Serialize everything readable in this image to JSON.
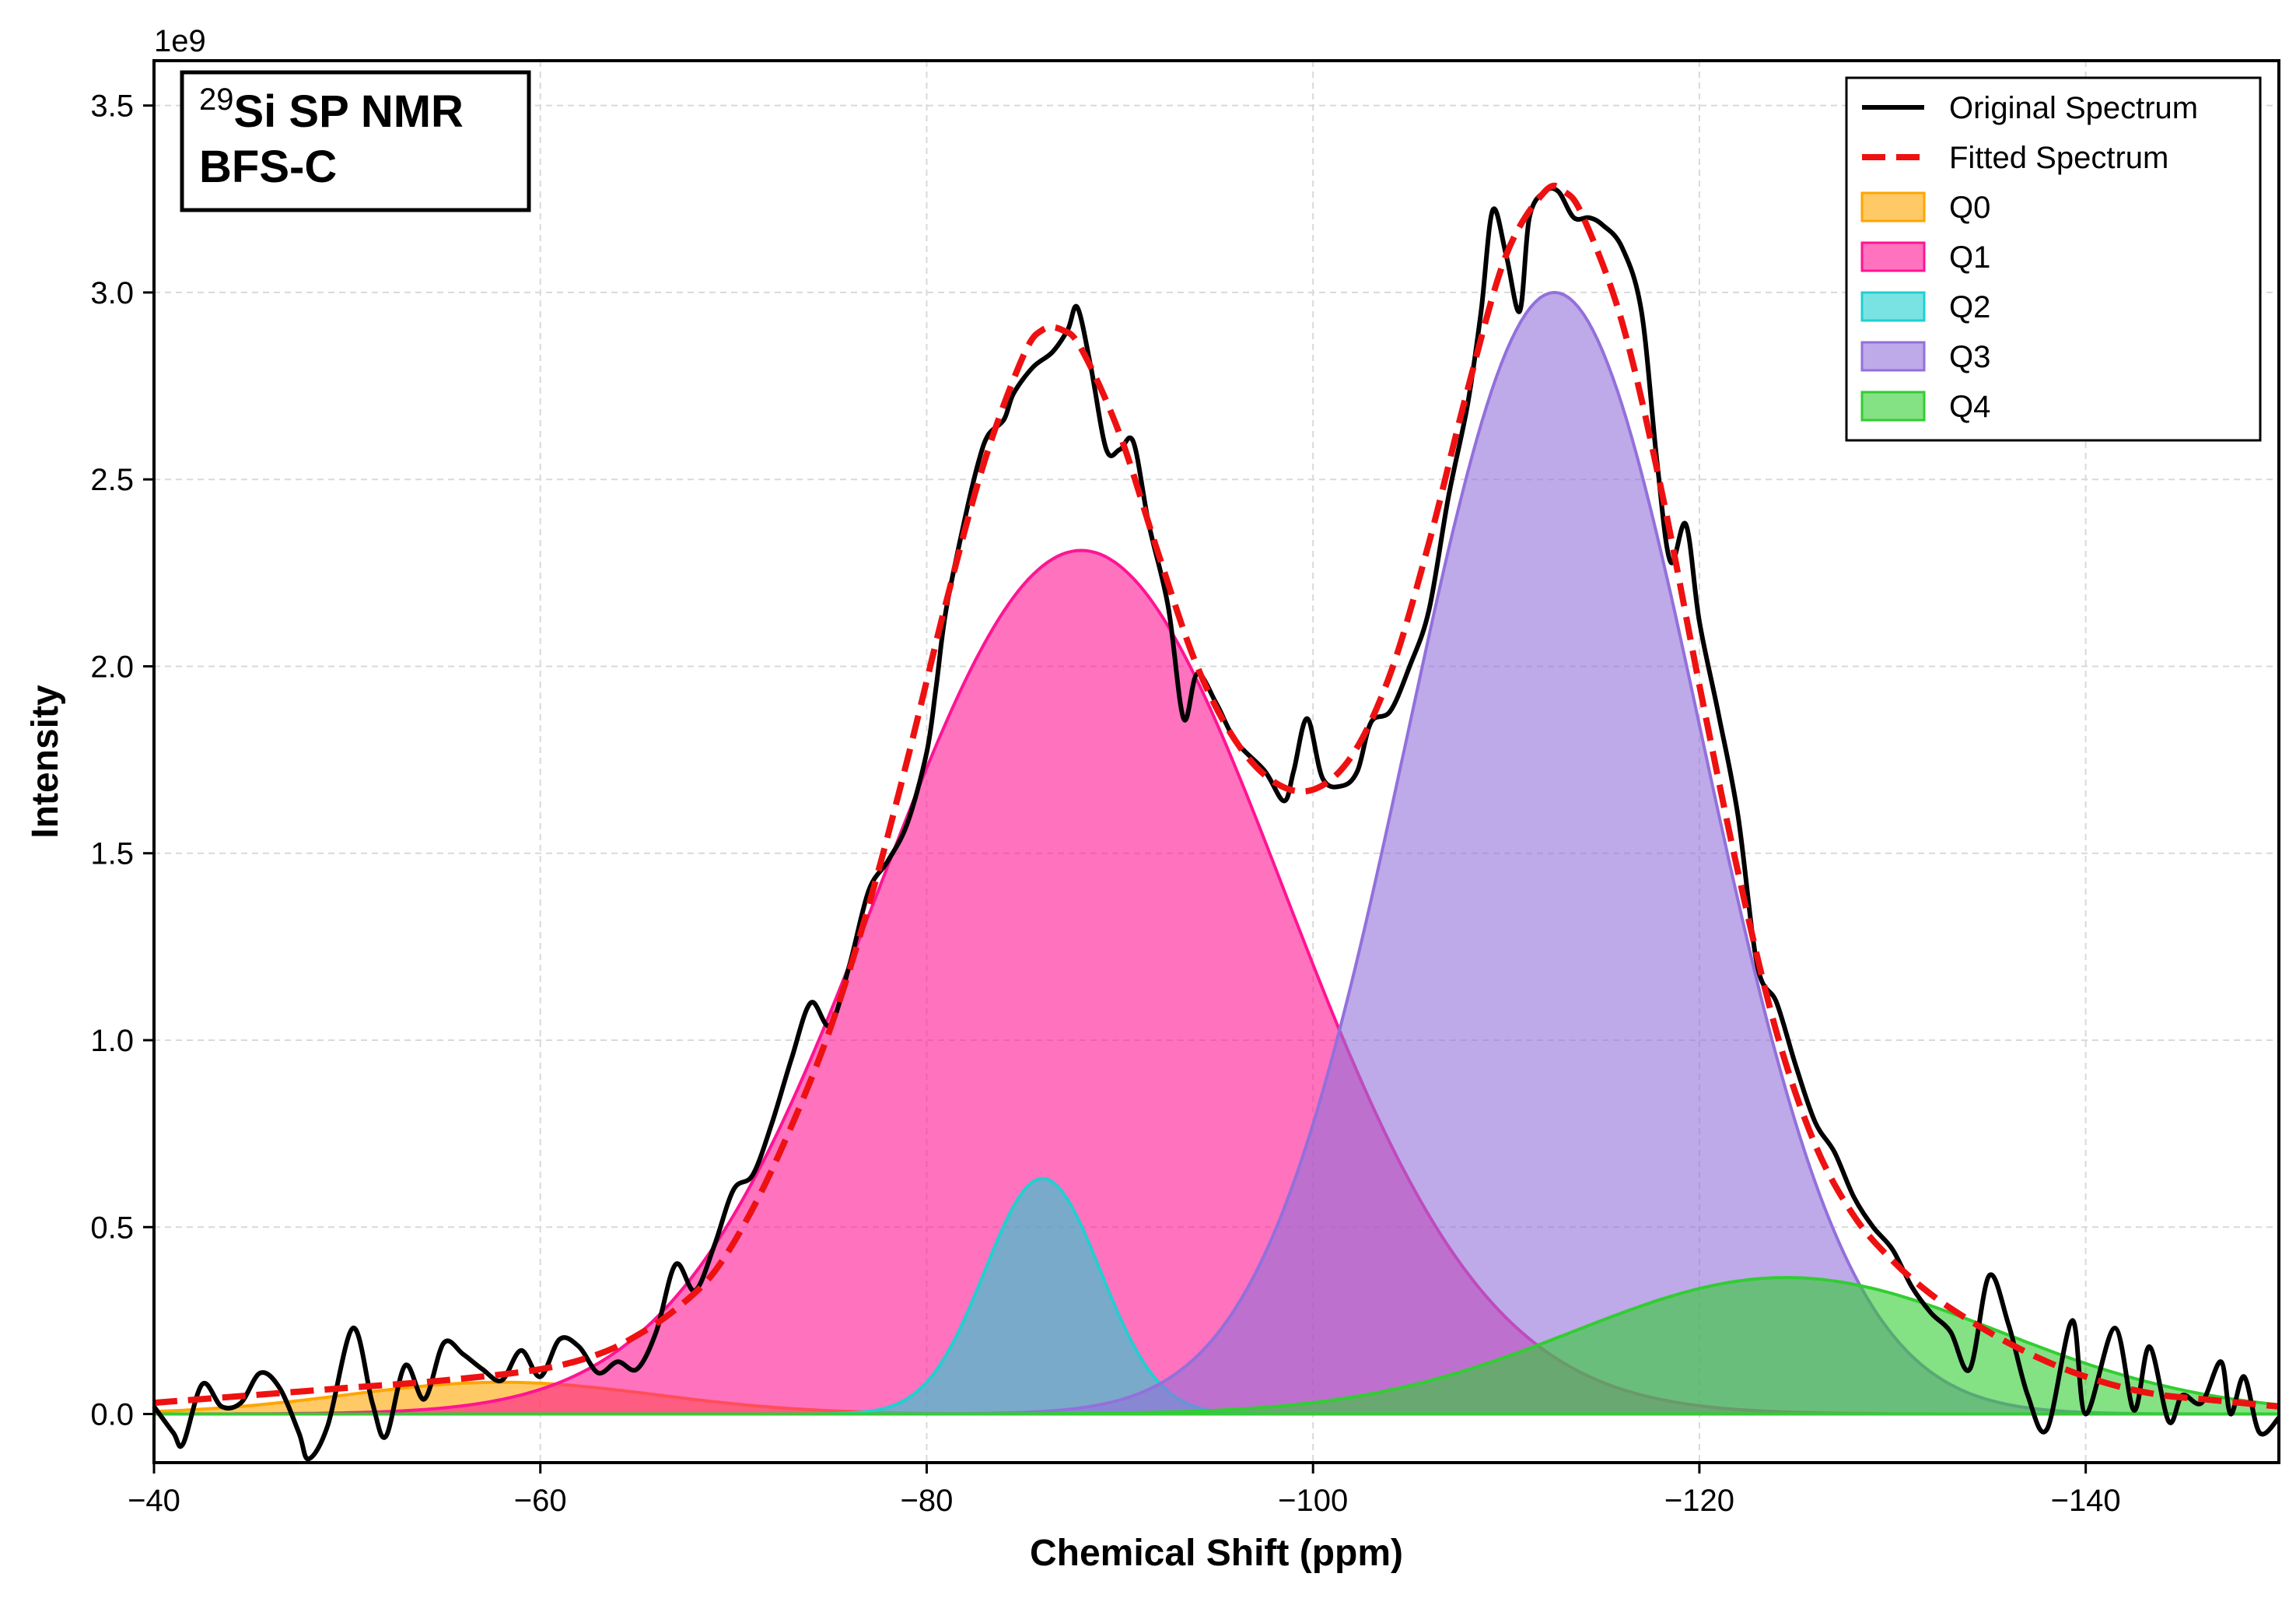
{
  "chart_data": {
    "type": "area",
    "xlabel": "Chemical Shift (ppm)",
    "ylabel": "Intensity",
    "offset_text": "1e9",
    "xlim": [
      -40,
      -150
    ],
    "ylim": [
      -0.13,
      3.62
    ],
    "y_scale": 1000000000,
    "x_ticks": [
      -40,
      -60,
      -80,
      -100,
      -120,
      -140
    ],
    "x_tick_labels": [
      "−40",
      "−60",
      "−80",
      "−100",
      "−120",
      "−140"
    ],
    "y_ticks": [
      0.0,
      0.5,
      1.0,
      1.5,
      2.0,
      2.5,
      3.0,
      3.5
    ],
    "y_tick_labels": [
      "0.0",
      "0.5",
      "1.0",
      "1.5",
      "2.0",
      "2.5",
      "3.0",
      "3.5"
    ],
    "grid": true,
    "legend_position": "top-right",
    "annotation": {
      "sup": "29",
      "line1": "Si SP NMR",
      "line2": "BFS-C"
    },
    "series": [
      {
        "name": "Original Spectrum",
        "kind": "line",
        "color": "#000000",
        "points": [
          [
            -40,
            0.02
          ],
          [
            -41,
            -0.05
          ],
          [
            -41.5,
            -0.08
          ],
          [
            -42.5,
            0.08
          ],
          [
            -43.5,
            0.02
          ],
          [
            -44.5,
            0.03
          ],
          [
            -45.5,
            0.11
          ],
          [
            -46.5,
            0.07
          ],
          [
            -47.5,
            -0.05
          ],
          [
            -48,
            -0.12
          ],
          [
            -49,
            -0.03
          ],
          [
            -50.3,
            0.23
          ],
          [
            -51.3,
            0.03
          ],
          [
            -52,
            -0.06
          ],
          [
            -53,
            0.13
          ],
          [
            -54,
            0.04
          ],
          [
            -55,
            0.19
          ],
          [
            -56,
            0.16
          ],
          [
            -57,
            0.12
          ],
          [
            -58,
            0.09
          ],
          [
            -59,
            0.17
          ],
          [
            -60,
            0.1
          ],
          [
            -61,
            0.2
          ],
          [
            -62,
            0.18
          ],
          [
            -63,
            0.11
          ],
          [
            -64,
            0.14
          ],
          [
            -65,
            0.12
          ],
          [
            -66,
            0.22
          ],
          [
            -67,
            0.4
          ],
          [
            -68,
            0.33
          ],
          [
            -69,
            0.45
          ],
          [
            -70,
            0.6
          ],
          [
            -71,
            0.64
          ],
          [
            -72,
            0.78
          ],
          [
            -73,
            0.95
          ],
          [
            -74,
            1.1
          ],
          [
            -75,
            1.04
          ],
          [
            -76,
            1.2
          ],
          [
            -77,
            1.4
          ],
          [
            -78,
            1.48
          ],
          [
            -79,
            1.58
          ],
          [
            -80,
            1.77
          ],
          [
            -80.5,
            1.95
          ],
          [
            -81,
            2.15
          ],
          [
            -82,
            2.4
          ],
          [
            -82.7,
            2.55
          ],
          [
            -83.2,
            2.62
          ],
          [
            -84,
            2.66
          ],
          [
            -84.5,
            2.73
          ],
          [
            -85.5,
            2.8
          ],
          [
            -86.5,
            2.84
          ],
          [
            -87.3,
            2.9
          ],
          [
            -87.8,
            2.96
          ],
          [
            -88.5,
            2.8
          ],
          [
            -89.3,
            2.58
          ],
          [
            -90,
            2.58
          ],
          [
            -90.7,
            2.6
          ],
          [
            -91.5,
            2.38
          ],
          [
            -92.5,
            2.16
          ],
          [
            -93.3,
            1.86
          ],
          [
            -94,
            1.98
          ],
          [
            -95,
            1.9
          ],
          [
            -96,
            1.8
          ],
          [
            -97.5,
            1.72
          ],
          [
            -98.5,
            1.64
          ],
          [
            -99,
            1.72
          ],
          [
            -99.7,
            1.86
          ],
          [
            -100.5,
            1.7
          ],
          [
            -101.5,
            1.68
          ],
          [
            -102.3,
            1.72
          ],
          [
            -103,
            1.85
          ],
          [
            -104,
            1.88
          ],
          [
            -105,
            2.0
          ],
          [
            -106,
            2.15
          ],
          [
            -107,
            2.45
          ],
          [
            -108,
            2.7
          ],
          [
            -108.7,
            2.95
          ],
          [
            -109.3,
            3.22
          ],
          [
            -110,
            3.1
          ],
          [
            -110.7,
            2.95
          ],
          [
            -111.2,
            3.2
          ],
          [
            -112,
            3.27
          ],
          [
            -112.7,
            3.27
          ],
          [
            -113.5,
            3.2
          ],
          [
            -114.3,
            3.2
          ],
          [
            -115,
            3.18
          ],
          [
            -116,
            3.12
          ],
          [
            -117,
            2.95
          ],
          [
            -117.8,
            2.55
          ],
          [
            -118.5,
            2.28
          ],
          [
            -119.3,
            2.38
          ],
          [
            -120,
            2.12
          ],
          [
            -121,
            1.87
          ],
          [
            -122,
            1.6
          ],
          [
            -123,
            1.2
          ],
          [
            -124,
            1.1
          ],
          [
            -125,
            0.93
          ],
          [
            -126,
            0.78
          ],
          [
            -127,
            0.7
          ],
          [
            -128,
            0.58
          ],
          [
            -129,
            0.5
          ],
          [
            -130,
            0.44
          ],
          [
            -131,
            0.34
          ],
          [
            -132,
            0.27
          ],
          [
            -133,
            0.22
          ],
          [
            -134,
            0.12
          ],
          [
            -135,
            0.37
          ],
          [
            -136,
            0.24
          ],
          [
            -137,
            0.05
          ],
          [
            -138,
            -0.04
          ],
          [
            -139.3,
            0.25
          ],
          [
            -140,
            0.0
          ],
          [
            -141.5,
            0.23
          ],
          [
            -142.5,
            0.01
          ],
          [
            -143.3,
            0.18
          ],
          [
            -144.3,
            -0.02
          ],
          [
            -145,
            0.05
          ],
          [
            -146,
            0.03
          ],
          [
            -147,
            0.14
          ],
          [
            -147.5,
            0.0
          ],
          [
            -148.2,
            0.1
          ],
          [
            -149,
            -0.05
          ],
          [
            -150,
            -0.01
          ]
        ]
      },
      {
        "name": "Fitted Spectrum",
        "kind": "dashed",
        "color": "#ee1111",
        "points": [
          [
            -40,
            0.03
          ],
          [
            -45,
            0.05
          ],
          [
            -50,
            0.07
          ],
          [
            -55,
            0.09
          ],
          [
            -60,
            0.12
          ],
          [
            -63,
            0.16
          ],
          [
            -65,
            0.21
          ],
          [
            -67,
            0.28
          ],
          [
            -69,
            0.38
          ],
          [
            -71,
            0.55
          ],
          [
            -73,
            0.77
          ],
          [
            -75,
            1.03
          ],
          [
            -77,
            1.36
          ],
          [
            -79,
            1.75
          ],
          [
            -81,
            2.17
          ],
          [
            -83,
            2.55
          ],
          [
            -85,
            2.83
          ],
          [
            -86,
            2.9
          ],
          [
            -87,
            2.9
          ],
          [
            -88,
            2.85
          ],
          [
            -90,
            2.62
          ],
          [
            -92,
            2.3
          ],
          [
            -94,
            2.0
          ],
          [
            -96,
            1.8
          ],
          [
            -98,
            1.69
          ],
          [
            -100,
            1.67
          ],
          [
            -102,
            1.76
          ],
          [
            -104,
            1.98
          ],
          [
            -106,
            2.33
          ],
          [
            -108,
            2.74
          ],
          [
            -110,
            3.1
          ],
          [
            -112,
            3.27
          ],
          [
            -113,
            3.27
          ],
          [
            -114,
            3.2
          ],
          [
            -116,
            2.92
          ],
          [
            -118,
            2.48
          ],
          [
            -120,
            1.95
          ],
          [
            -122,
            1.45
          ],
          [
            -124,
            1.02
          ],
          [
            -126,
            0.72
          ],
          [
            -128,
            0.53
          ],
          [
            -130,
            0.41
          ],
          [
            -132,
            0.32
          ],
          [
            -134,
            0.25
          ],
          [
            -136,
            0.19
          ],
          [
            -138,
            0.14
          ],
          [
            -140,
            0.1
          ],
          [
            -142,
            0.07
          ],
          [
            -144,
            0.05
          ],
          [
            -146,
            0.04
          ],
          [
            -150,
            0.02
          ]
        ]
      },
      {
        "name": "Q0",
        "kind": "gaussian",
        "color": "#ffa500",
        "center": -58,
        "amplitude": 0.085,
        "sigma": 8
      },
      {
        "name": "Q1",
        "kind": "gaussian",
        "color": "#ff1493",
        "center": -88,
        "amplitude": 2.31,
        "sigma": 10.5
      },
      {
        "name": "Q2",
        "kind": "gaussian",
        "color": "#20d0d0",
        "center": -86,
        "amplitude": 0.63,
        "sigma": 3
      },
      {
        "name": "Q3",
        "kind": "gaussian",
        "color": "#9370db",
        "center": -112.5,
        "amplitude": 3.0,
        "sigma": 7.6
      },
      {
        "name": "Q4",
        "kind": "gaussian",
        "color": "#32cd32",
        "center": -124.5,
        "amplitude": 0.365,
        "sigma": 11
      }
    ]
  }
}
